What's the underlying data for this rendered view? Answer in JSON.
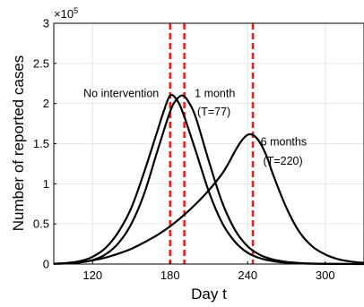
{
  "chart_data": {
    "type": "line",
    "xlabel": "Day t",
    "ylabel": "Number of reported cases",
    "xlim": [
      90,
      330
    ],
    "ylim": [
      0,
      300000
    ],
    "multiplier_base": "×10",
    "multiplier_exp": "5",
    "xticks": [
      120,
      180,
      240,
      300
    ],
    "xtick_labels": [
      "120",
      "180",
      "240",
      "300"
    ],
    "yticks": [
      0,
      50000,
      100000,
      150000,
      200000,
      250000,
      300000
    ],
    "ytick_labels": [
      "0",
      "0.5",
      "1",
      "1.5",
      "2",
      "2.5",
      "3"
    ],
    "grid": true,
    "line_color": "#000000",
    "marker_color": "#ee1c1c",
    "series": [
      {
        "x": [
          90,
          100,
          110,
          120,
          130,
          140,
          150,
          160,
          170,
          175,
          180,
          185,
          190,
          200,
          210,
          220,
          230,
          240,
          250,
          260,
          270,
          280,
          290,
          300,
          310,
          320,
          330
        ],
        "values": [
          500,
          1300,
          3500,
          9000,
          20000,
          40000,
          70000,
          115000,
          165000,
          190000,
          210000,
          205000,
          188000,
          140000,
          90000,
          52000,
          28000,
          14000,
          7000,
          3500,
          1700,
          800,
          400,
          200,
          100,
          50,
          30
        ]
      },
      {
        "x": [
          90,
          100,
          110,
          120,
          130,
          140,
          150,
          160,
          170,
          180,
          185,
          190,
          195,
          200,
          210,
          220,
          230,
          240,
          250,
          260,
          270,
          280,
          290,
          300,
          310,
          320,
          330
        ],
        "values": [
          300,
          800,
          2000,
          5000,
          12000,
          26000,
          50000,
          88000,
          140000,
          190000,
          205000,
          210000,
          200000,
          182000,
          128000,
          78000,
          43000,
          22000,
          11000,
          5500,
          2700,
          1300,
          600,
          300,
          150,
          80,
          40
        ]
      },
      {
        "x": [
          90,
          100,
          110,
          120,
          130,
          140,
          150,
          160,
          170,
          180,
          190,
          200,
          210,
          220,
          225,
          230,
          235,
          240,
          245,
          250,
          255,
          260,
          270,
          280,
          290,
          300,
          310,
          320,
          330
        ],
        "values": [
          400,
          1000,
          2200,
          4500,
          8000,
          13000,
          19000,
          27000,
          36000,
          47000,
          60000,
          75000,
          92000,
          112000,
          125000,
          140000,
          153000,
          161000,
          160000,
          150000,
          133000,
          110000,
          70000,
          40000,
          22000,
          12000,
          6000,
          3000,
          1500
        ]
      }
    ],
    "vertical_lines": [
      180,
      191,
      244
    ],
    "annotations": [
      {
        "text": "No intervention",
        "x": 113,
        "y": 208000
      },
      {
        "text": "1 month",
        "x": 199,
        "y": 208000
      },
      {
        "text": "(T=77)",
        "x": 201,
        "y": 185000
      },
      {
        "text": "6 months",
        "x": 250,
        "y": 148000
      },
      {
        "text": "(T=220)",
        "x": 252,
        "y": 124000
      }
    ]
  }
}
